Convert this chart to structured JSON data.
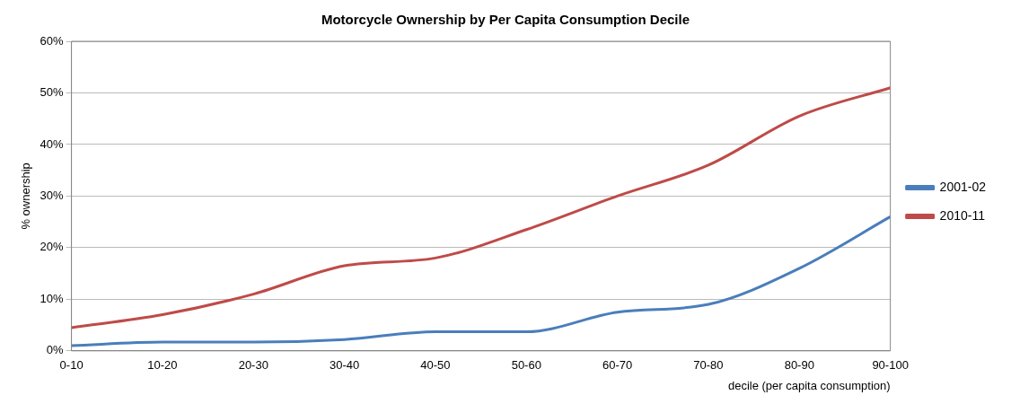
{
  "chart_data": {
    "type": "line",
    "title": "Motorcycle Ownership by Per Capita Consumption Decile",
    "xlabel": "decile (per capita consumption)",
    "ylabel": "% ownership",
    "categories": [
      "0-10",
      "10-20",
      "20-30",
      "30-40",
      "40-50",
      "50-60",
      "60-70",
      "70-80",
      "80-90",
      "90-100"
    ],
    "series": [
      {
        "name": "2001-02",
        "color": "#4a7ebb",
        "values": [
          1,
          1.7,
          1.7,
          2.2,
          3.7,
          3.7,
          7.5,
          9,
          16,
          26
        ]
      },
      {
        "name": "2010-11",
        "color": "#be4b48",
        "values": [
          4.5,
          7,
          11,
          16.5,
          18,
          23.5,
          30,
          36,
          45.5,
          51
        ]
      }
    ],
    "ylim": [
      0,
      60
    ],
    "yticks": [
      {
        "value": 0,
        "label": "0%"
      },
      {
        "value": 10,
        "label": "10%"
      },
      {
        "value": 20,
        "label": "20%"
      },
      {
        "value": 30,
        "label": "30%"
      },
      {
        "value": 40,
        "label": "40%"
      },
      {
        "value": 50,
        "label": "50%"
      },
      {
        "value": 60,
        "label": "60%"
      }
    ],
    "grid": "y",
    "legend": "right",
    "marker": "none",
    "line_style": "solid"
  }
}
